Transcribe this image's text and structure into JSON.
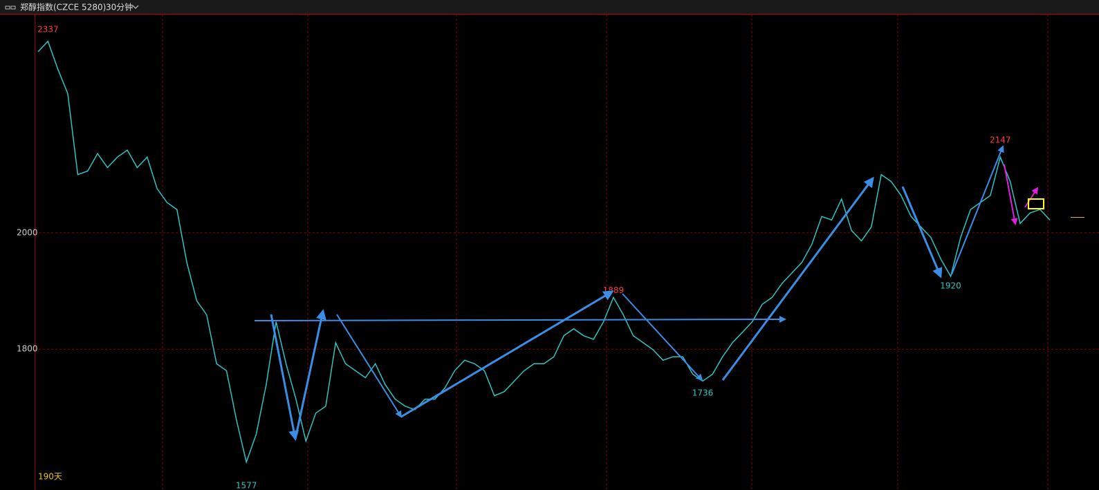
{
  "chart_data": {
    "type": "line",
    "title": "郑醇指数(CZCE 5280)",
    "period": "30分钟",
    "footer": "190天",
    "color": "#2ec4c4",
    "grid": true,
    "ylim": [
      1558,
      2375
    ],
    "yticks": [
      1800,
      2000
    ],
    "values": [
      2311,
      2329,
      2281,
      2239,
      2100,
      2106,
      2136,
      2112,
      2130,
      2142,
      2112,
      2130,
      2076,
      2052,
      2040,
      1949,
      1883,
      1859,
      1775,
      1763,
      1678,
      1606,
      1654,
      1739,
      1847,
      1775,
      1714,
      1642,
      1690,
      1702,
      1811,
      1775,
      1763,
      1751,
      1775,
      1739,
      1714,
      1702,
      1696,
      1714,
      1714,
      1733,
      1763,
      1781,
      1775,
      1763,
      1720,
      1727,
      1745,
      1763,
      1775,
      1775,
      1787,
      1823,
      1835,
      1823,
      1817,
      1847,
      1889,
      1859,
      1823,
      1811,
      1799,
      1781,
      1787,
      1787,
      1757,
      1745,
      1757,
      1787,
      1811,
      1829,
      1847,
      1877,
      1889,
      1913,
      1931,
      1949,
      1980,
      2028,
      2022,
      2058,
      2004,
      1986,
      2010,
      2100,
      2088,
      2064,
      2028,
      2010,
      1992,
      1955,
      1925,
      1992,
      2040,
      2052,
      2064,
      2130,
      2088,
      2016,
      2034,
      2040,
      2022
    ],
    "annotations": [
      {
        "value": 2337,
        "x": 1,
        "color": "#ff3b3b"
      },
      {
        "value": 1577,
        "x": 21,
        "color": "#2ec4c4"
      },
      {
        "value": 1889,
        "x": 58,
        "color": "#ff3b3b"
      },
      {
        "value": 1736,
        "x": 67,
        "color": "#2ec4c4"
      },
      {
        "value": 1920,
        "x": 92,
        "color": "#2ec4c4"
      },
      {
        "value": 2147,
        "x": 97,
        "color": "#ff3b3b"
      }
    ]
  }
}
